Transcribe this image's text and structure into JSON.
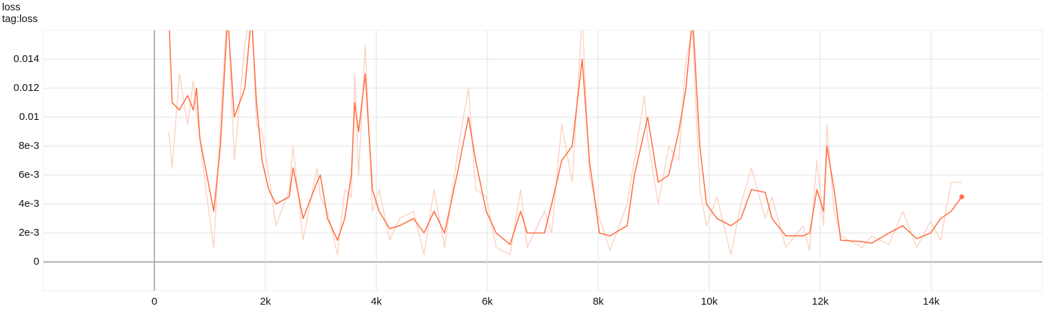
{
  "chart_data": {
    "type": "line",
    "title": "loss",
    "subtitle": "tag:loss",
    "x": [
      260,
      320,
      450,
      600,
      700,
      760,
      820,
      945,
      1070,
      1190,
      1320,
      1440,
      1630,
      1750,
      1840,
      1940,
      2060,
      2190,
      2430,
      2500,
      2680,
      2930,
      2990,
      3120,
      3300,
      3430,
      3550,
      3610,
      3680,
      3800,
      3930,
      4050,
      4240,
      4420,
      4670,
      4860,
      5040,
      5230,
      5480,
      5660,
      5790,
      5980,
      6160,
      6410,
      6600,
      6720,
      7030,
      7160,
      7340,
      7530,
      7710,
      7840,
      8020,
      8210,
      8520,
      8650,
      8830,
      8890,
      9080,
      9270,
      9450,
      9580,
      9700,
      9830,
      9950,
      10140,
      10390,
      10570,
      10760,
      11010,
      11130,
      11380,
      11690,
      11810,
      11940,
      12060,
      12120,
      12250,
      12370,
      12750,
      12930,
      13240,
      13490,
      13740,
      13990,
      14170,
      14360,
      14550
    ],
    "series": [
      {
        "color": "#fcd3c4",
        "values": [
          0.009,
          0.0065,
          0.013,
          0.0095,
          0.0125,
          0.0105,
          0.0085,
          0.0045,
          0.001,
          0.0095,
          0.018,
          0.007,
          0.015,
          0.018,
          0.0095,
          0.009,
          0.006,
          0.0025,
          0.005,
          0.008,
          0.0015,
          0.0065,
          0.0045,
          0.0035,
          0.0005,
          0.005,
          0.0045,
          0.013,
          0.006,
          0.015,
          0.0035,
          0.005,
          0.0015,
          0.003,
          0.0035,
          0.0005,
          0.005,
          0.001,
          0.008,
          0.012,
          0.005,
          0.0045,
          0.001,
          0.0005,
          0.005,
          0.001,
          0.0035,
          0.002,
          0.0095,
          0.0055,
          0.017,
          0.006,
          0.003,
          0.0008,
          0.004,
          0.007,
          0.0115,
          0.0085,
          0.004,
          0.008,
          0.007,
          0.014,
          0.016,
          0.005,
          0.0025,
          0.0045,
          0.0005,
          0.004,
          0.0065,
          0.003,
          0.0045,
          0.001,
          0.0025,
          0.0008,
          0.007,
          0.0025,
          0.0095,
          0.0035,
          0.0018,
          0.001,
          0.0018,
          0.0012,
          0.0035,
          0.001,
          0.0028,
          0.0015,
          0.0055,
          0.0055
        ]
      },
      {
        "color": "#ff7043",
        "values": [
          0.017,
          0.011,
          0.0105,
          0.0115,
          0.0105,
          0.012,
          0.0085,
          0.006,
          0.0035,
          0.008,
          0.017,
          0.01,
          0.012,
          0.017,
          0.011,
          0.007,
          0.005,
          0.004,
          0.0045,
          0.0065,
          0.003,
          0.0055,
          0.006,
          0.003,
          0.0015,
          0.003,
          0.006,
          0.011,
          0.009,
          0.013,
          0.005,
          0.0035,
          0.0023,
          0.0025,
          0.003,
          0.002,
          0.0035,
          0.002,
          0.0065,
          0.01,
          0.007,
          0.0035,
          0.002,
          0.0012,
          0.0035,
          0.002,
          0.002,
          0.004,
          0.007,
          0.008,
          0.014,
          0.007,
          0.002,
          0.0018,
          0.0025,
          0.006,
          0.009,
          0.01,
          0.0055,
          0.006,
          0.009,
          0.012,
          0.017,
          0.008,
          0.004,
          0.003,
          0.0025,
          0.003,
          0.005,
          0.0048,
          0.003,
          0.0018,
          0.0018,
          0.002,
          0.005,
          0.0035,
          0.008,
          0.005,
          0.0015,
          0.0014,
          0.0013,
          0.002,
          0.0025,
          0.0016,
          0.002,
          0.003,
          0.0035,
          0.0045
        ]
      }
    ],
    "xlim": [
      -2000,
      16000
    ],
    "ylim": [
      -0.002,
      0.016
    ],
    "xticks": [
      0,
      {
        "value": 2000,
        "label": "2k"
      },
      {
        "value": 4000,
        "label": "4k"
      },
      {
        "value": 6000,
        "label": "6k"
      },
      {
        "value": 8000,
        "label": "8k"
      },
      {
        "value": 10000,
        "label": "10k"
      },
      {
        "value": 12000,
        "label": "12k"
      },
      {
        "value": 14000,
        "label": "14k"
      }
    ],
    "yticks": [
      0,
      {
        "value": 0.002,
        "label": "2e-3"
      },
      {
        "value": 0.004,
        "label": "4e-3"
      },
      {
        "value": 0.006,
        "label": "6e-3"
      },
      {
        "value": 0.008,
        "label": "8e-3"
      },
      0.01,
      0.012,
      0.014
    ],
    "grid": true
  }
}
